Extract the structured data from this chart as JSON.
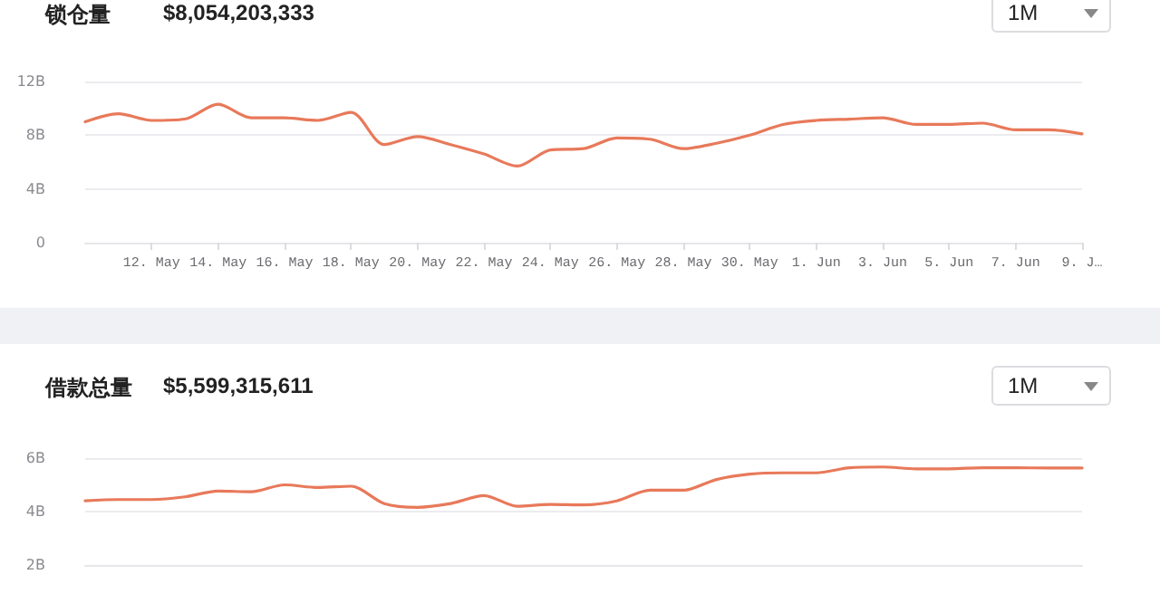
{
  "chart_data": [
    {
      "type": "line",
      "title": "锁仓量",
      "subtitle": "$8,054,203,333",
      "annotations": [
        "1M"
      ],
      "x": [
        "--05-10",
        "--05-11",
        "--05-12",
        "--05-13",
        "--05-14",
        "--05-15",
        "--05-16",
        "--05-17",
        "--05-18",
        "--05-19",
        "--05-20",
        "--05-21",
        "--05-22",
        "--05-23",
        "--05-24",
        "--05-25",
        "--05-26",
        "--05-27",
        "--05-28",
        "--05-29",
        "--05-30",
        "--05-31",
        "--06-01",
        "--06-02",
        "--06-03",
        "--06-04",
        "--06-05",
        "--06-06",
        "--06-07",
        "--06-08",
        "--06-09"
      ],
      "series": [
        {
          "color": "#e8795a",
          "values": [
            9.0,
            9.6,
            9.1,
            9.2,
            10.3,
            9.3,
            9.3,
            9.1,
            9.7,
            7.3,
            7.9,
            7.3,
            6.6,
            5.7,
            6.9,
            7.0,
            7.8,
            7.7,
            7.0,
            7.4,
            8.0,
            8.8,
            9.1,
            9.2,
            9.3,
            8.8,
            8.8,
            8.9,
            8.4,
            8.4,
            8.1
          ]
        }
      ],
      "xlim": [
        "--05-10",
        "--06-09"
      ],
      "xticks": [
        {
          "value": "--05-12",
          "label": "12. May"
        },
        {
          "value": "--05-14",
          "label": "14. May"
        },
        {
          "value": "--05-16",
          "label": "16. May"
        },
        {
          "value": "--05-18",
          "label": "18. May"
        },
        {
          "value": "--05-20",
          "label": "20. May"
        },
        {
          "value": "--05-22",
          "label": "22. May"
        },
        {
          "value": "--05-24",
          "label": "24. May"
        },
        {
          "value": "--05-26",
          "label": "26. May"
        },
        {
          "value": "--05-28",
          "label": "28. May"
        },
        {
          "value": "--05-30",
          "label": "30. May"
        },
        {
          "value": "--06-01",
          "label": "1. Jun"
        },
        {
          "value": "--06-03",
          "label": "3. Jun"
        },
        {
          "value": "--06-05",
          "label": "5. Jun"
        },
        {
          "value": "--06-07",
          "label": "7. Jun"
        },
        {
          "value": "--06-09",
          "label": "9. J…"
        }
      ],
      "ylim": [
        0,
        12
      ],
      "yticks": [
        0,
        {
          "value": 4,
          "label": "4B"
        },
        {
          "value": 8,
          "label": "8B"
        },
        {
          "value": 12,
          "label": "12B"
        }
      ],
      "grid": "y",
      "marker": "none",
      "line_style": "solid"
    },
    {
      "type": "line",
      "title": "借款总量",
      "subtitle": "$5,599,315,611",
      "annotations": [
        "1M"
      ],
      "x": [
        "--05-10",
        "--05-11",
        "--05-12",
        "--05-13",
        "--05-14",
        "--05-15",
        "--05-16",
        "--05-17",
        "--05-18",
        "--05-19",
        "--05-20",
        "--05-21",
        "--05-22",
        "--05-23",
        "--05-24",
        "--05-25",
        "--05-26",
        "--05-27",
        "--05-28",
        "--05-29",
        "--05-30",
        "--05-31",
        "--06-01",
        "--06-02",
        "--06-03",
        "--06-04",
        "--06-05",
        "--06-06",
        "--06-07",
        "--06-08",
        "--06-09"
      ],
      "series": [
        {
          "color": "#e8795a",
          "values": [
            4.4,
            4.45,
            4.45,
            4.55,
            4.77,
            4.74,
            5.0,
            4.9,
            4.95,
            4.3,
            4.16,
            4.3,
            4.6,
            4.2,
            4.27,
            4.25,
            4.4,
            4.8,
            4.8,
            5.2,
            5.4,
            5.45,
            5.45,
            5.64,
            5.67,
            5.6,
            5.6,
            5.64,
            5.64,
            5.63,
            5.63
          ]
        }
      ],
      "xlim": [
        "--05-10",
        "--06-09"
      ],
      "ylim": [
        2,
        6
      ],
      "yticks": [
        {
          "value": 2,
          "label": "2B"
        },
        {
          "value": 4,
          "label": "4B"
        },
        {
          "value": 6,
          "label": "6B"
        }
      ],
      "tick_labels": "y",
      "grid": "y",
      "marker": "none",
      "line_style": "solid"
    }
  ]
}
